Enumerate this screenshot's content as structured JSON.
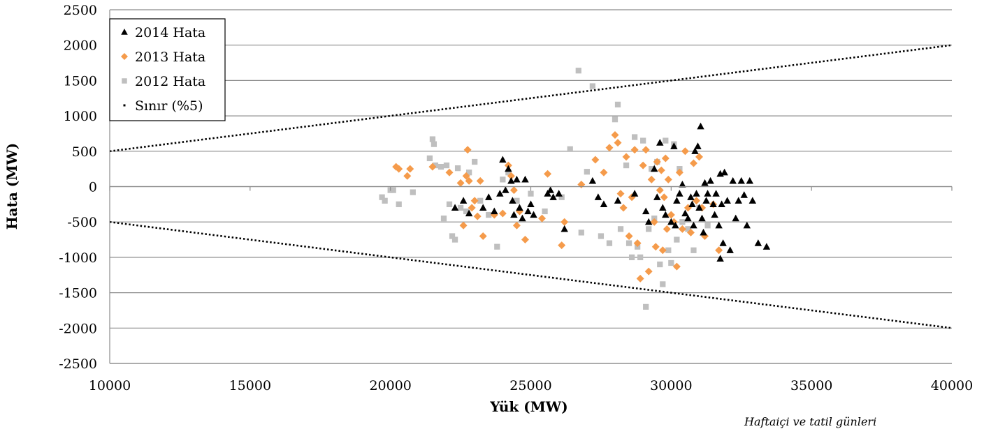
{
  "chart_data": {
    "type": "scatter",
    "title": "",
    "xlabel": "Yük (MW)",
    "ylabel": "Hata (MW)",
    "xlim": [
      10000,
      40000
    ],
    "ylim": [
      -2500,
      2500
    ],
    "x_ticks": [
      10000,
      15000,
      20000,
      25000,
      30000,
      35000,
      40000
    ],
    "y_ticks": [
      2500,
      2000,
      1500,
      1000,
      500,
      0,
      -500,
      -1000,
      -1500,
      -2000,
      -2500
    ],
    "grid": "horizontal",
    "legend_position": "top-left",
    "footnote": "Haftaiçi ve tatil günleri",
    "series": [
      {
        "name": "2014 Hata",
        "marker": "triangle",
        "color": "#000000",
        "points": [
          [
            22300,
            -300
          ],
          [
            22600,
            -200
          ],
          [
            22800,
            -380
          ],
          [
            23300,
            -300
          ],
          [
            23500,
            -150
          ],
          [
            23700,
            -350
          ],
          [
            23900,
            -100
          ],
          [
            24000,
            380
          ],
          [
            24100,
            -50
          ],
          [
            24200,
            250
          ],
          [
            24300,
            80
          ],
          [
            24350,
            -200
          ],
          [
            24400,
            -400
          ],
          [
            24500,
            100
          ],
          [
            24600,
            -300
          ],
          [
            24700,
            -450
          ],
          [
            24800,
            100
          ],
          [
            24900,
            -350
          ],
          [
            25000,
            -250
          ],
          [
            25100,
            -400
          ],
          [
            25600,
            -100
          ],
          [
            25700,
            -50
          ],
          [
            25800,
            -150
          ],
          [
            26000,
            -100
          ],
          [
            26200,
            -600
          ],
          [
            27200,
            80
          ],
          [
            27400,
            -150
          ],
          [
            27600,
            -250
          ],
          [
            28100,
            -200
          ],
          [
            28700,
            -100
          ],
          [
            29100,
            -350
          ],
          [
            29200,
            -500
          ],
          [
            29400,
            250
          ],
          [
            29500,
            -150
          ],
          [
            29600,
            620
          ],
          [
            29700,
            -300
          ],
          [
            29800,
            -400
          ],
          [
            30000,
            -500
          ],
          [
            30100,
            570
          ],
          [
            30150,
            -550
          ],
          [
            30200,
            -200
          ],
          [
            30300,
            -100
          ],
          [
            30400,
            30
          ],
          [
            30500,
            -380
          ],
          [
            30600,
            -450
          ],
          [
            30700,
            -150
          ],
          [
            30750,
            -250
          ],
          [
            30800,
            -550
          ],
          [
            30850,
            500
          ],
          [
            30900,
            -100
          ],
          [
            30950,
            570
          ],
          [
            31000,
            -300
          ],
          [
            31050,
            850
          ],
          [
            31100,
            -450
          ],
          [
            31150,
            -650
          ],
          [
            31200,
            50
          ],
          [
            31250,
            -200
          ],
          [
            31300,
            -100
          ],
          [
            31400,
            80
          ],
          [
            31500,
            -250
          ],
          [
            31550,
            -400
          ],
          [
            31600,
            -100
          ],
          [
            31700,
            -550
          ],
          [
            31750,
            180
          ],
          [
            31800,
            -250
          ],
          [
            31850,
            -800
          ],
          [
            31900,
            200
          ],
          [
            32000,
            -200
          ],
          [
            32100,
            -900
          ],
          [
            32200,
            80
          ],
          [
            32300,
            -450
          ],
          [
            32400,
            -200
          ],
          [
            32500,
            80
          ],
          [
            32600,
            -120
          ],
          [
            32700,
            -550
          ],
          [
            32800,
            80
          ],
          [
            32900,
            -200
          ],
          [
            33100,
            -800
          ],
          [
            33400,
            -850
          ],
          [
            31750,
            -1020
          ]
        ]
      },
      {
        "name": "2013 Hata",
        "marker": "diamond",
        "color": "#f59b4b",
        "points": [
          [
            20200,
            280
          ],
          [
            20300,
            250
          ],
          [
            20600,
            150
          ],
          [
            20700,
            250
          ],
          [
            21500,
            280
          ],
          [
            22100,
            200
          ],
          [
            22500,
            50
          ],
          [
            22600,
            -550
          ],
          [
            22700,
            150
          ],
          [
            22750,
            520
          ],
          [
            22800,
            80
          ],
          [
            22900,
            -300
          ],
          [
            23000,
            -200
          ],
          [
            23100,
            -420
          ],
          [
            23200,
            80
          ],
          [
            23300,
            -700
          ],
          [
            23700,
            -400
          ],
          [
            24000,
            -380
          ],
          [
            24200,
            300
          ],
          [
            24300,
            150
          ],
          [
            24400,
            -50
          ],
          [
            24500,
            -550
          ],
          [
            24600,
            -350
          ],
          [
            24800,
            -750
          ],
          [
            25400,
            -450
          ],
          [
            25600,
            180
          ],
          [
            26100,
            -830
          ],
          [
            26200,
            -500
          ],
          [
            26800,
            30
          ],
          [
            27300,
            380
          ],
          [
            27600,
            200
          ],
          [
            27800,
            550
          ],
          [
            28000,
            730
          ],
          [
            28100,
            620
          ],
          [
            28200,
            -100
          ],
          [
            28300,
            -300
          ],
          [
            28400,
            420
          ],
          [
            28500,
            -700
          ],
          [
            28600,
            -150
          ],
          [
            28700,
            520
          ],
          [
            28800,
            -800
          ],
          [
            28900,
            -1300
          ],
          [
            29000,
            300
          ],
          [
            29100,
            520
          ],
          [
            29200,
            -1200
          ],
          [
            29300,
            100
          ],
          [
            29400,
            -500
          ],
          [
            29450,
            -850
          ],
          [
            29500,
            350
          ],
          [
            29600,
            -50
          ],
          [
            29650,
            230
          ],
          [
            29700,
            -900
          ],
          [
            29750,
            -150
          ],
          [
            29800,
            400
          ],
          [
            29850,
            -600
          ],
          [
            29900,
            100
          ],
          [
            30000,
            -400
          ],
          [
            30100,
            -500
          ],
          [
            30200,
            -1130
          ],
          [
            30300,
            200
          ],
          [
            30400,
            -600
          ],
          [
            30500,
            500
          ],
          [
            30600,
            -300
          ],
          [
            30700,
            -650
          ],
          [
            30800,
            330
          ],
          [
            30900,
            -200
          ],
          [
            31000,
            420
          ],
          [
            31100,
            -300
          ],
          [
            31200,
            -700
          ],
          [
            31500,
            -250
          ],
          [
            31700,
            -900
          ]
        ]
      },
      {
        "name": "2012 Hata",
        "marker": "square",
        "color": "#bfbfbf",
        "points": [
          [
            19700,
            -150
          ],
          [
            19800,
            -200
          ],
          [
            20000,
            -50
          ],
          [
            20100,
            -50
          ],
          [
            20300,
            -250
          ],
          [
            20800,
            -80
          ],
          [
            21400,
            400
          ],
          [
            21500,
            670
          ],
          [
            21550,
            600
          ],
          [
            21600,
            300
          ],
          [
            21800,
            280
          ],
          [
            21900,
            -450
          ],
          [
            22000,
            300
          ],
          [
            22100,
            -250
          ],
          [
            22200,
            -700
          ],
          [
            22300,
            -750
          ],
          [
            22400,
            260
          ],
          [
            22500,
            -300
          ],
          [
            22700,
            -350
          ],
          [
            22800,
            200
          ],
          [
            23000,
            350
          ],
          [
            23200,
            -200
          ],
          [
            23500,
            -400
          ],
          [
            23800,
            -850
          ],
          [
            24000,
            100
          ],
          [
            24200,
            200
          ],
          [
            24500,
            -200
          ],
          [
            25000,
            -100
          ],
          [
            25500,
            -350
          ],
          [
            26100,
            -150
          ],
          [
            26400,
            530
          ],
          [
            26800,
            -650
          ],
          [
            27000,
            210
          ],
          [
            27200,
            1420
          ],
          [
            26700,
            1640
          ],
          [
            27500,
            -700
          ],
          [
            27800,
            -800
          ],
          [
            28000,
            950
          ],
          [
            28100,
            1160
          ],
          [
            28200,
            -600
          ],
          [
            28400,
            300
          ],
          [
            28500,
            -800
          ],
          [
            28600,
            -1000
          ],
          [
            28700,
            700
          ],
          [
            28800,
            -850
          ],
          [
            28900,
            -1000
          ],
          [
            29000,
            650
          ],
          [
            29100,
            -1700
          ],
          [
            29200,
            -600
          ],
          [
            29300,
            250
          ],
          [
            29400,
            -450
          ],
          [
            29500,
            350
          ],
          [
            29600,
            -1100
          ],
          [
            29700,
            -1380
          ],
          [
            29800,
            650
          ],
          [
            29900,
            -900
          ],
          [
            30000,
            -1080
          ],
          [
            30100,
            600
          ],
          [
            30200,
            -750
          ],
          [
            30300,
            250
          ],
          [
            30400,
            -500
          ],
          [
            30600,
            -600
          ],
          [
            30800,
            -900
          ],
          [
            31000,
            -300
          ],
          [
            31300,
            -550
          ]
        ]
      },
      {
        "name": "Sınır (%5)",
        "marker": "dotted-line",
        "color": "#000000",
        "segments": [
          [
            [
              10000,
              500
            ],
            [
              40000,
              2000
            ]
          ],
          [
            [
              10000,
              -500
            ],
            [
              40000,
              -2000
            ]
          ]
        ]
      }
    ]
  }
}
